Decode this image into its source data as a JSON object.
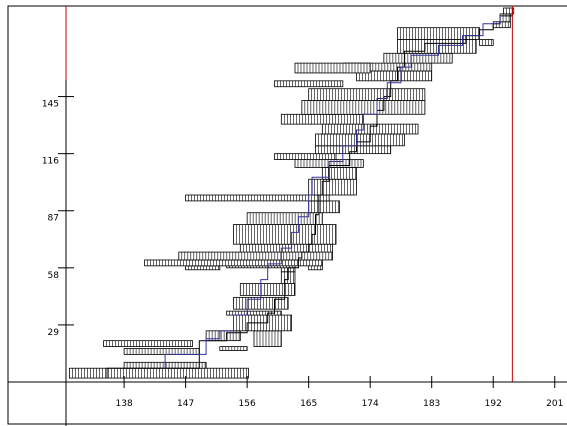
{
  "chart_data": {
    "type": "bar",
    "title": "",
    "xlabel": "",
    "ylabel": "",
    "x_ticks": [
      138,
      147,
      156,
      165,
      174,
      183,
      192,
      201
    ],
    "y_ticks": [
      29,
      58,
      87,
      116,
      145
    ],
    "xlim": [
      129.5,
      202.5
    ],
    "ylim": [
      0,
      190
    ],
    "marker_lines": [
      {
        "x": 129.5,
        "color": "#cc0000"
      },
      {
        "x": 194.8,
        "color": "#cc0000"
      }
    ],
    "bars": [
      {
        "y": 2,
        "h": 5,
        "x0": 130,
        "x1": 156.2
      },
      {
        "y": 7,
        "h": 3,
        "x0": 138,
        "x1": 150
      },
      {
        "y": 14,
        "h": 3,
        "x0": 138,
        "x1": 149
      },
      {
        "y": 18,
        "h": 3,
        "x0": 135,
        "x1": 148
      },
      {
        "y": 16,
        "h": 2,
        "x0": 152,
        "x1": 156
      },
      {
        "y": 21,
        "h": 5,
        "x0": 150,
        "x1": 155
      },
      {
        "y": 18,
        "h": 8,
        "x0": 157,
        "x1": 161
      },
      {
        "y": 26,
        "h": 8,
        "x0": 154,
        "x1": 162.5
      },
      {
        "y": 34,
        "h": 2,
        "x0": 153,
        "x1": 161
      },
      {
        "y": 37,
        "h": 6,
        "x0": 154,
        "x1": 162
      },
      {
        "y": 44,
        "h": 6,
        "x0": 155,
        "x1": 163
      },
      {
        "y": 50,
        "h": 6,
        "x0": 161,
        "x1": 163
      },
      {
        "y": 56,
        "h": 5,
        "x0": 161,
        "x1": 163
      },
      {
        "y": 57,
        "h": 2,
        "x0": 147,
        "x1": 152
      },
      {
        "y": 58,
        "h": 5,
        "x0": 153,
        "x1": 163
      },
      {
        "y": 57,
        "h": 4,
        "x0": 165,
        "x1": 167
      },
      {
        "y": 59,
        "h": 3,
        "x0": 141,
        "x1": 167
      },
      {
        "y": 62,
        "h": 4,
        "x0": 146,
        "x1": 168.5
      },
      {
        "y": 66,
        "h": 4,
        "x0": 155,
        "x1": 168.5
      },
      {
        "y": 70,
        "h": 10,
        "x0": 154,
        "x1": 169
      },
      {
        "y": 80,
        "h": 6,
        "x0": 156,
        "x1": 167
      },
      {
        "y": 86,
        "h": 6,
        "x0": 165,
        "x1": 169.5
      },
      {
        "y": 92,
        "h": 3,
        "x0": 147,
        "x1": 168
      },
      {
        "y": 95,
        "h": 8,
        "x0": 165,
        "x1": 172
      },
      {
        "y": 103,
        "h": 6,
        "x0": 167,
        "x1": 172
      },
      {
        "y": 109,
        "h": 4,
        "x0": 163,
        "x1": 173
      },
      {
        "y": 113,
        "h": 3,
        "x0": 160,
        "x1": 169
      },
      {
        "y": 116,
        "h": 4,
        "x0": 166,
        "x1": 177
      },
      {
        "y": 120,
        "h": 6,
        "x0": 166,
        "x1": 179
      },
      {
        "y": 126,
        "h": 5,
        "x0": 167,
        "x1": 181
      },
      {
        "y": 131,
        "h": 5,
        "x0": 161,
        "x1": 173
      },
      {
        "y": 136,
        "h": 7,
        "x0": 164,
        "x1": 182
      },
      {
        "y": 143,
        "h": 6,
        "x0": 165,
        "x1": 182
      },
      {
        "y": 150,
        "h": 3,
        "x0": 160,
        "x1": 170
      },
      {
        "y": 153,
        "h": 5,
        "x0": 172,
        "x1": 183
      },
      {
        "y": 158,
        "h": 4,
        "x0": 170,
        "x1": 183
      },
      {
        "y": 157,
        "h": 5,
        "x0": 163,
        "x1": 174
      },
      {
        "y": 162,
        "h": 5,
        "x0": 176,
        "x1": 186
      },
      {
        "y": 167,
        "h": 7,
        "x0": 178,
        "x1": 189.5
      },
      {
        "y": 174,
        "h": 6,
        "x0": 178,
        "x1": 190
      },
      {
        "y": 171,
        "h": 3,
        "x0": 190,
        "x1": 192
      },
      {
        "y": 180,
        "h": 3,
        "x0": 192,
        "x1": 194.5
      },
      {
        "y": 183,
        "h": 4,
        "x0": 193,
        "x1": 194.5
      },
      {
        "y": 187,
        "h": 3,
        "x0": 193.5,
        "x1": 195
      }
    ],
    "step_line_black": [
      [
        135.5,
        2
      ],
      [
        135.5,
        7
      ],
      [
        149,
        7
      ],
      [
        149,
        21
      ],
      [
        153,
        21
      ],
      [
        153,
        25
      ],
      [
        156,
        25
      ],
      [
        156,
        30
      ],
      [
        159,
        30
      ],
      [
        159,
        35
      ],
      [
        160,
        35
      ],
      [
        160,
        42
      ],
      [
        161.5,
        42
      ],
      [
        161.5,
        52
      ],
      [
        162,
        52
      ],
      [
        162,
        58
      ],
      [
        163.5,
        58
      ],
      [
        163.5,
        63
      ],
      [
        164,
        63
      ],
      [
        164,
        66
      ],
      [
        165,
        66
      ],
      [
        165,
        70
      ],
      [
        165.5,
        70
      ],
      [
        165.5,
        75
      ],
      [
        166,
        75
      ],
      [
        166,
        85
      ],
      [
        166.5,
        85
      ],
      [
        166.5,
        95
      ],
      [
        167,
        95
      ],
      [
        167,
        102
      ],
      [
        168,
        102
      ],
      [
        168,
        110
      ],
      [
        171,
        110
      ],
      [
        171,
        117
      ],
      [
        172,
        117
      ],
      [
        172,
        122
      ],
      [
        174,
        122
      ],
      [
        174,
        130
      ],
      [
        175,
        130
      ],
      [
        175,
        138
      ],
      [
        176,
        138
      ],
      [
        176,
        145
      ],
      [
        177,
        145
      ],
      [
        177,
        153
      ],
      [
        178,
        153
      ],
      [
        178,
        160
      ],
      [
        179,
        160
      ],
      [
        179,
        168
      ],
      [
        182,
        168
      ],
      [
        182,
        172
      ],
      [
        188,
        172
      ],
      [
        188,
        176
      ],
      [
        190,
        176
      ],
      [
        190,
        179
      ],
      [
        192,
        179
      ],
      [
        192,
        182
      ],
      [
        193,
        182
      ],
      [
        193,
        186
      ],
      [
        194.8,
        186
      ],
      [
        194.8,
        190
      ]
    ],
    "step_line_blue": [
      [
        144,
        7
      ],
      [
        144,
        14
      ],
      [
        150,
        14
      ],
      [
        150,
        22
      ],
      [
        152,
        22
      ],
      [
        152,
        26
      ],
      [
        154,
        26
      ],
      [
        154,
        34
      ],
      [
        156,
        34
      ],
      [
        156,
        42
      ],
      [
        158,
        42
      ],
      [
        158,
        52
      ],
      [
        159,
        52
      ],
      [
        159,
        60
      ],
      [
        161,
        60
      ],
      [
        161,
        68
      ],
      [
        162.5,
        68
      ],
      [
        162.5,
        76
      ],
      [
        163.5,
        76
      ],
      [
        163.5,
        84
      ],
      [
        165,
        84
      ],
      [
        165,
        95
      ],
      [
        165.5,
        95
      ],
      [
        165.5,
        104
      ],
      [
        168,
        104
      ],
      [
        168,
        112
      ],
      [
        170,
        112
      ],
      [
        170,
        120
      ],
      [
        172,
        120
      ],
      [
        172,
        128
      ],
      [
        173,
        128
      ],
      [
        173,
        136
      ],
      [
        175,
        136
      ],
      [
        175,
        144
      ],
      [
        176.5,
        144
      ],
      [
        176.5,
        152
      ],
      [
        178.5,
        152
      ],
      [
        178.5,
        160
      ],
      [
        180,
        160
      ],
      [
        180,
        166
      ],
      [
        184,
        166
      ],
      [
        184,
        171
      ],
      [
        187.5,
        171
      ],
      [
        187.5,
        176
      ],
      [
        190.5,
        176
      ],
      [
        190.5,
        182
      ],
      [
        193,
        182
      ],
      [
        193,
        186
      ]
    ]
  }
}
